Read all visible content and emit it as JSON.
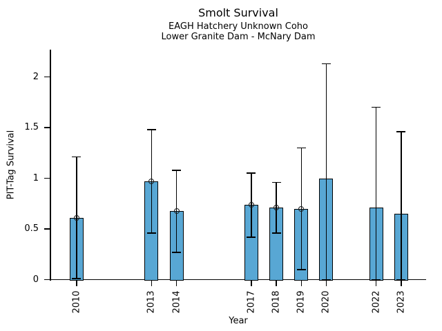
{
  "chart_data": {
    "type": "bar",
    "title": "Smolt Survival",
    "subtitle": [
      "EAGH Hatchery Unknown Coho",
      "Lower Granite Dam - McNary Dam"
    ],
    "xlabel": "Year",
    "ylabel": "PIT-Tag Survival",
    "categories": [
      "2010",
      "2013",
      "2014",
      "2017",
      "2018",
      "2019",
      "2020",
      "2022",
      "2023"
    ],
    "x": [
      2010,
      2013,
      2014,
      2017,
      2018,
      2019,
      2020,
      2022,
      2023
    ],
    "values": [
      0.61,
      0.97,
      0.68,
      0.74,
      0.71,
      0.7,
      1.0,
      0.71,
      0.65
    ],
    "error_upper": [
      1.21,
      1.48,
      1.08,
      1.05,
      0.96,
      1.3,
      2.13,
      1.7,
      1.46
    ],
    "error_lower": [
      0.01,
      0.46,
      0.27,
      0.42,
      0.46,
      0.1,
      0.0,
      0.0,
      0.0
    ],
    "point_markers": [
      true,
      true,
      true,
      true,
      true,
      true,
      false,
      false,
      false
    ],
    "yticks": [
      0,
      0.5,
      1,
      1.5,
      2
    ],
    "ytick_labels": [
      "0",
      "0.5",
      "1",
      "1.5",
      "2"
    ],
    "xlim": [
      2008.95,
      2024.0
    ],
    "ylim": [
      0,
      2.27
    ],
    "grid": false,
    "legend": "none",
    "bar_color": "#58A7D4",
    "bar_edge_color": "#000000",
    "error_bar_color": "#000000",
    "marker_color": "#1a1a1a"
  }
}
